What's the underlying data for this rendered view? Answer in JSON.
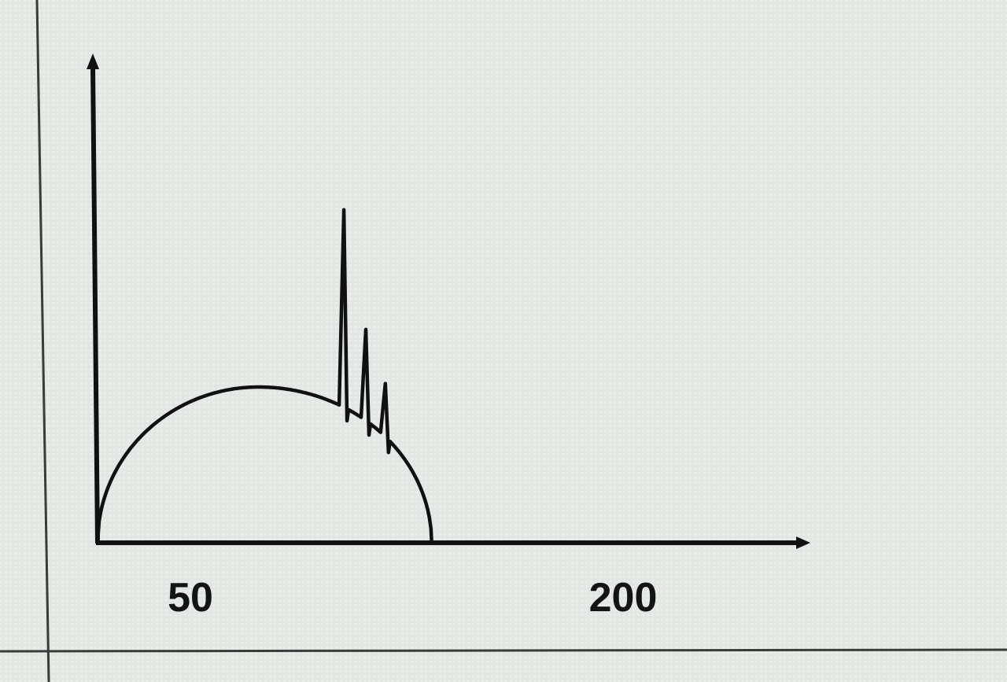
{
  "chart_data": {
    "type": "line",
    "title": "",
    "xlabel": "",
    "ylabel": "",
    "x_ticks": [
      {
        "label": "50",
        "value": 50
      },
      {
        "label": "200",
        "value": 200
      }
    ],
    "series": [
      {
        "shape": "hump",
        "x_start": 0,
        "x_end": 137,
        "peak_x": 66
      },
      {
        "shape": "spikes",
        "peaks": [
          {
            "x": 101,
            "height_ratio": 1.0
          },
          {
            "x": 110,
            "height_ratio": 0.45
          },
          {
            "x": 118,
            "height_ratio": 0.25
          }
        ]
      }
    ],
    "grid": false
  }
}
